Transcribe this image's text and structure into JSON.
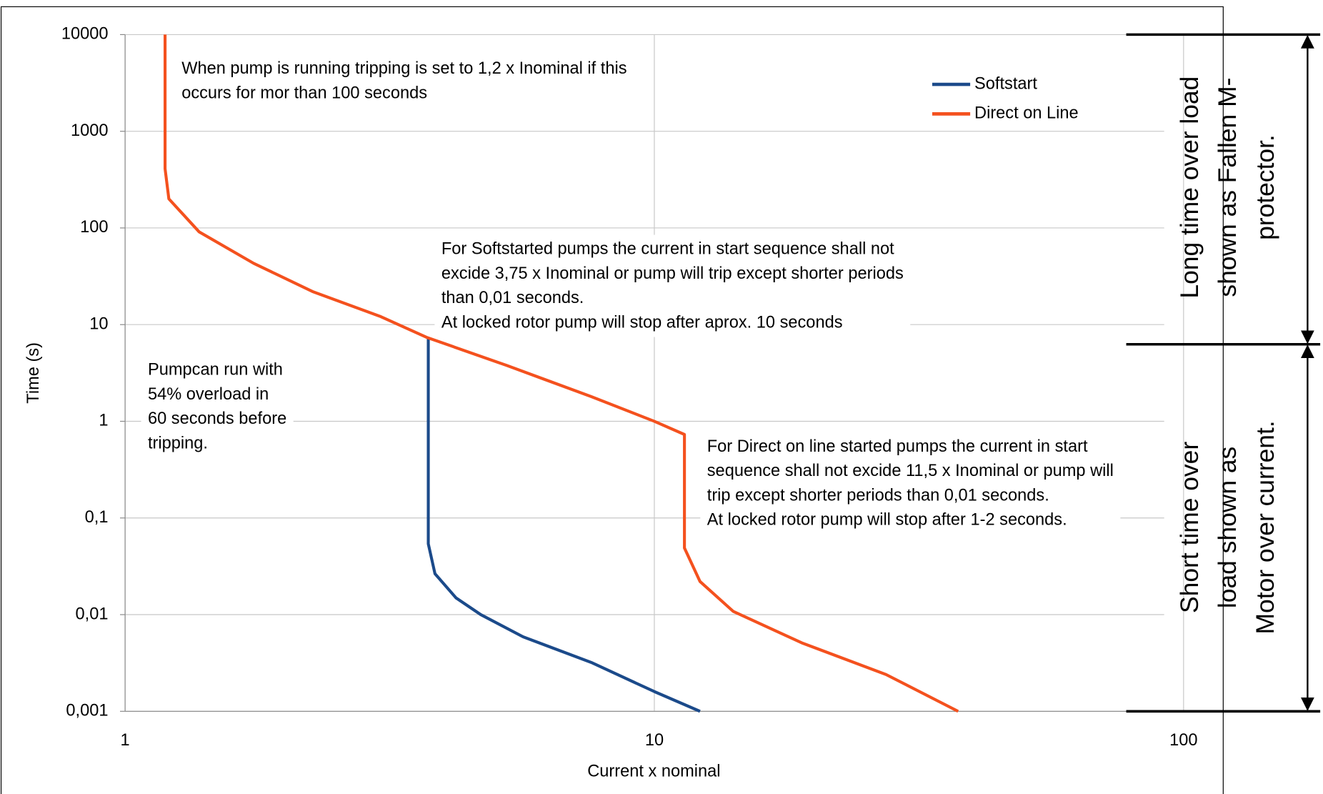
{
  "chart_data": {
    "type": "line",
    "x_label": "Current x nominal",
    "y_label": "Time (s)",
    "xscale": "log",
    "yscale": "log",
    "grid": true,
    "legend": "upper right",
    "xlim": [
      1,
      100
    ],
    "xticks": [
      1,
      10,
      100
    ],
    "ylim": [
      0.001,
      10000
    ],
    "yticks": [
      {
        "value": 0.001,
        "label": "0,001"
      },
      {
        "value": 0.01,
        "label": "0,01"
      },
      {
        "value": 0.1,
        "label": "0,1"
      },
      1,
      10,
      100,
      1000,
      10000
    ],
    "series": [
      {
        "name": "Softstart",
        "color": "#1b4a8a",
        "x": [
          3.74,
          3.74,
          3.85,
          4.22,
          4.7,
          5.65,
          7.6,
          10,
          12.2
        ],
        "values": [
          7.4,
          0.054,
          0.0265,
          0.0149,
          0.01,
          0.0059,
          0.0032,
          0.0016,
          0.001
        ]
      },
      {
        "name": "Direct on Line",
        "color": "#f4511e",
        "x": [
          1.19,
          1.19,
          1.21,
          1.38,
          1.75,
          2.26,
          3.03,
          3.71,
          5.25,
          7.6,
          10,
          11.4,
          11.4,
          12.2,
          14.1,
          19,
          27.4,
          37.5
        ],
        "values": [
          10000,
          410,
          200,
          91,
          43,
          22,
          12.2,
          7.4,
          3.8,
          1.8,
          1,
          0.73,
          0.049,
          0.022,
          0.0108,
          0.0051,
          0.0024,
          0.001
        ]
      }
    ],
    "annotations": [
      {
        "lines": [
          "When pump is running tripping is set to 1,2 x Inominal if this",
          "occurs for mor than 100 seconds"
        ]
      },
      {
        "lines": [
          "For Softstarted pumps the current in start sequence shall not",
          "excide 3,75 x Inominal or pump will trip except shorter periods",
          "than 0,01 seconds.",
          "At locked rotor pump will stop after aprox. 10 seconds"
        ]
      },
      {
        "lines": [
          "Pumpcan run with",
          "54% overload in",
          "60 seconds before",
          "tripping."
        ]
      },
      {
        "lines": [
          "For Direct on line started pumps the current in start",
          "sequence shall not excide 11,5 x Inominal or pump will",
          "trip except shorter periods than 0,01 seconds.",
          "At locked rotor pump will stop after 1-2 seconds."
        ]
      }
    ],
    "side_notes": [
      {
        "lines": [
          "Long time over load",
          "shown as Fallen M-",
          "protector."
        ]
      },
      {
        "lines": [
          "Short time over",
          "load shown as",
          "Motor over current."
        ]
      }
    ]
  }
}
